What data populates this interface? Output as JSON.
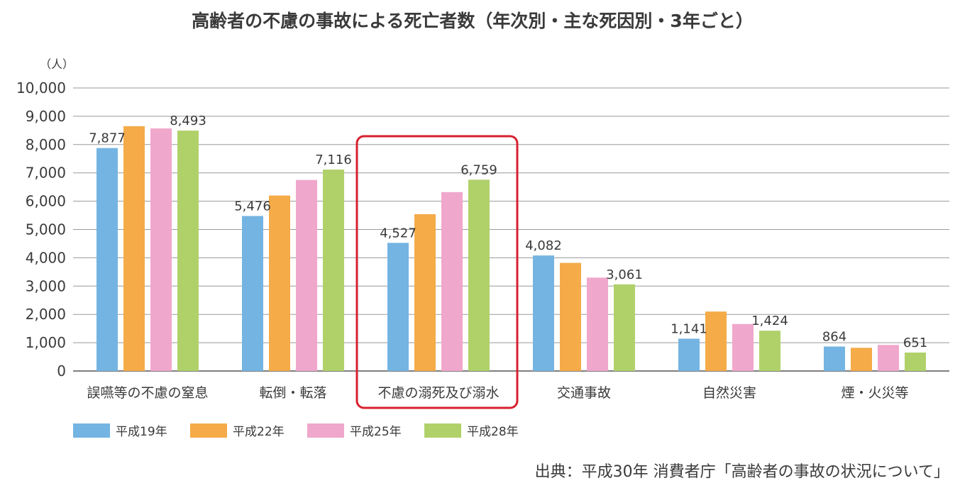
{
  "chart_data": {
    "type": "bar",
    "title": "高齢者の不慮の事故による死亡者数（年次別・主な死因別・3年ごと）",
    "ylabel": "（人）",
    "ylim": [
      0,
      10000
    ],
    "yticks": [
      "0",
      "1,000",
      "2,000",
      "3,000",
      "4,000",
      "5,000",
      "6,000",
      "7,000",
      "8,000",
      "9,000",
      "10,000"
    ],
    "categories": [
      "誤嚥等の不慮の窒息",
      "転倒・転落",
      "不慮の溺死及び溺水",
      "交通事故",
      "自然災害",
      "煙・火災等"
    ],
    "series": [
      {
        "name": "平成19年",
        "color": "#74b4e2",
        "values": [
          7877,
          5476,
          4527,
          4082,
          1141,
          864
        ]
      },
      {
        "name": "平成22年",
        "color": "#f4ab48",
        "values": [
          8650,
          6200,
          5540,
          3820,
          2100,
          820
        ]
      },
      {
        "name": "平成25年",
        "color": "#f0a7cc",
        "values": [
          8570,
          6750,
          6320,
          3300,
          1660,
          920
        ]
      },
      {
        "name": "平成28年",
        "color": "#b0d16a",
        "values": [
          8493,
          7116,
          6759,
          3061,
          1424,
          651
        ]
      }
    ],
    "data_labels": [
      {
        "category": 0,
        "series": 0,
        "text": "7,877"
      },
      {
        "category": 0,
        "series": 3,
        "text": "8,493"
      },
      {
        "category": 1,
        "series": 0,
        "text": "5,476"
      },
      {
        "category": 1,
        "series": 3,
        "text": "7,116"
      },
      {
        "category": 2,
        "series": 0,
        "text": "4,527"
      },
      {
        "category": 2,
        "series": 3,
        "text": "6,759"
      },
      {
        "category": 3,
        "series": 0,
        "text": "4,082"
      },
      {
        "category": 3,
        "series": 3,
        "text": "3,061"
      },
      {
        "category": 4,
        "series": 0,
        "text": "1,141"
      },
      {
        "category": 4,
        "series": 3,
        "text": "1,424"
      },
      {
        "category": 5,
        "series": 0,
        "text": "864"
      },
      {
        "category": 5,
        "series": 3,
        "text": "651"
      }
    ],
    "highlight_category": 2,
    "highlight_color": "#d8202e",
    "grid": true,
    "legend_position": "bottom-left"
  },
  "source": "出典：平成30年 消費者庁「高齢者の事故の状況について」"
}
